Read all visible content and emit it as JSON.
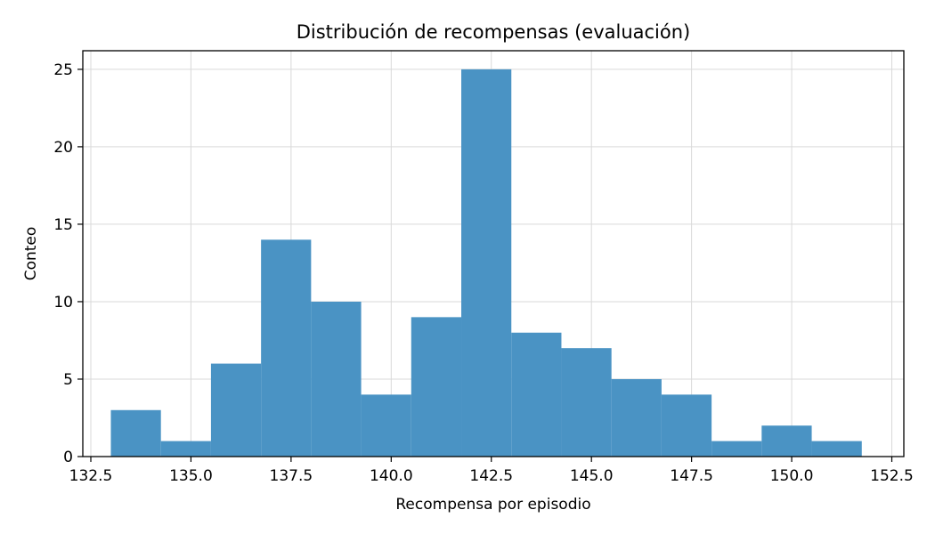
{
  "chart_data": {
    "type": "bar",
    "title": "Distribución de recompensas (evaluación)",
    "xlabel": "Recompensa por episodio",
    "ylabel": "Conteo",
    "xlim": [
      132.3,
      152.8
    ],
    "ylim": [
      0,
      26.2
    ],
    "x_ticks": [
      132.5,
      135.0,
      137.5,
      140.0,
      142.5,
      145.0,
      147.5,
      150.0,
      152.5
    ],
    "x_tick_labels": [
      "132.5",
      "135.0",
      "137.5",
      "140.0",
      "142.5",
      "145.0",
      "147.5",
      "150.0",
      "152.5"
    ],
    "y_ticks": [
      0,
      5,
      10,
      15,
      20,
      25
    ],
    "y_tick_labels": [
      "0",
      "5",
      "10",
      "15",
      "20",
      "25"
    ],
    "grid": true,
    "bar_color": "#4a93c4",
    "bins": [
      {
        "start": 133.0,
        "end": 134.25,
        "count": 3
      },
      {
        "start": 134.25,
        "end": 135.5,
        "count": 1
      },
      {
        "start": 135.5,
        "end": 136.75,
        "count": 6
      },
      {
        "start": 136.75,
        "end": 138.0,
        "count": 14
      },
      {
        "start": 138.0,
        "end": 139.25,
        "count": 10
      },
      {
        "start": 139.25,
        "end": 140.5,
        "count": 4
      },
      {
        "start": 140.5,
        "end": 141.75,
        "count": 9
      },
      {
        "start": 141.75,
        "end": 143.0,
        "count": 25
      },
      {
        "start": 143.0,
        "end": 144.25,
        "count": 8
      },
      {
        "start": 144.25,
        "end": 145.5,
        "count": 7
      },
      {
        "start": 145.5,
        "end": 146.75,
        "count": 5
      },
      {
        "start": 146.75,
        "end": 148.0,
        "count": 4
      },
      {
        "start": 148.0,
        "end": 149.25,
        "count": 1
      },
      {
        "start": 149.25,
        "end": 150.5,
        "count": 2
      },
      {
        "start": 150.5,
        "end": 151.75,
        "count": 1
      }
    ]
  }
}
